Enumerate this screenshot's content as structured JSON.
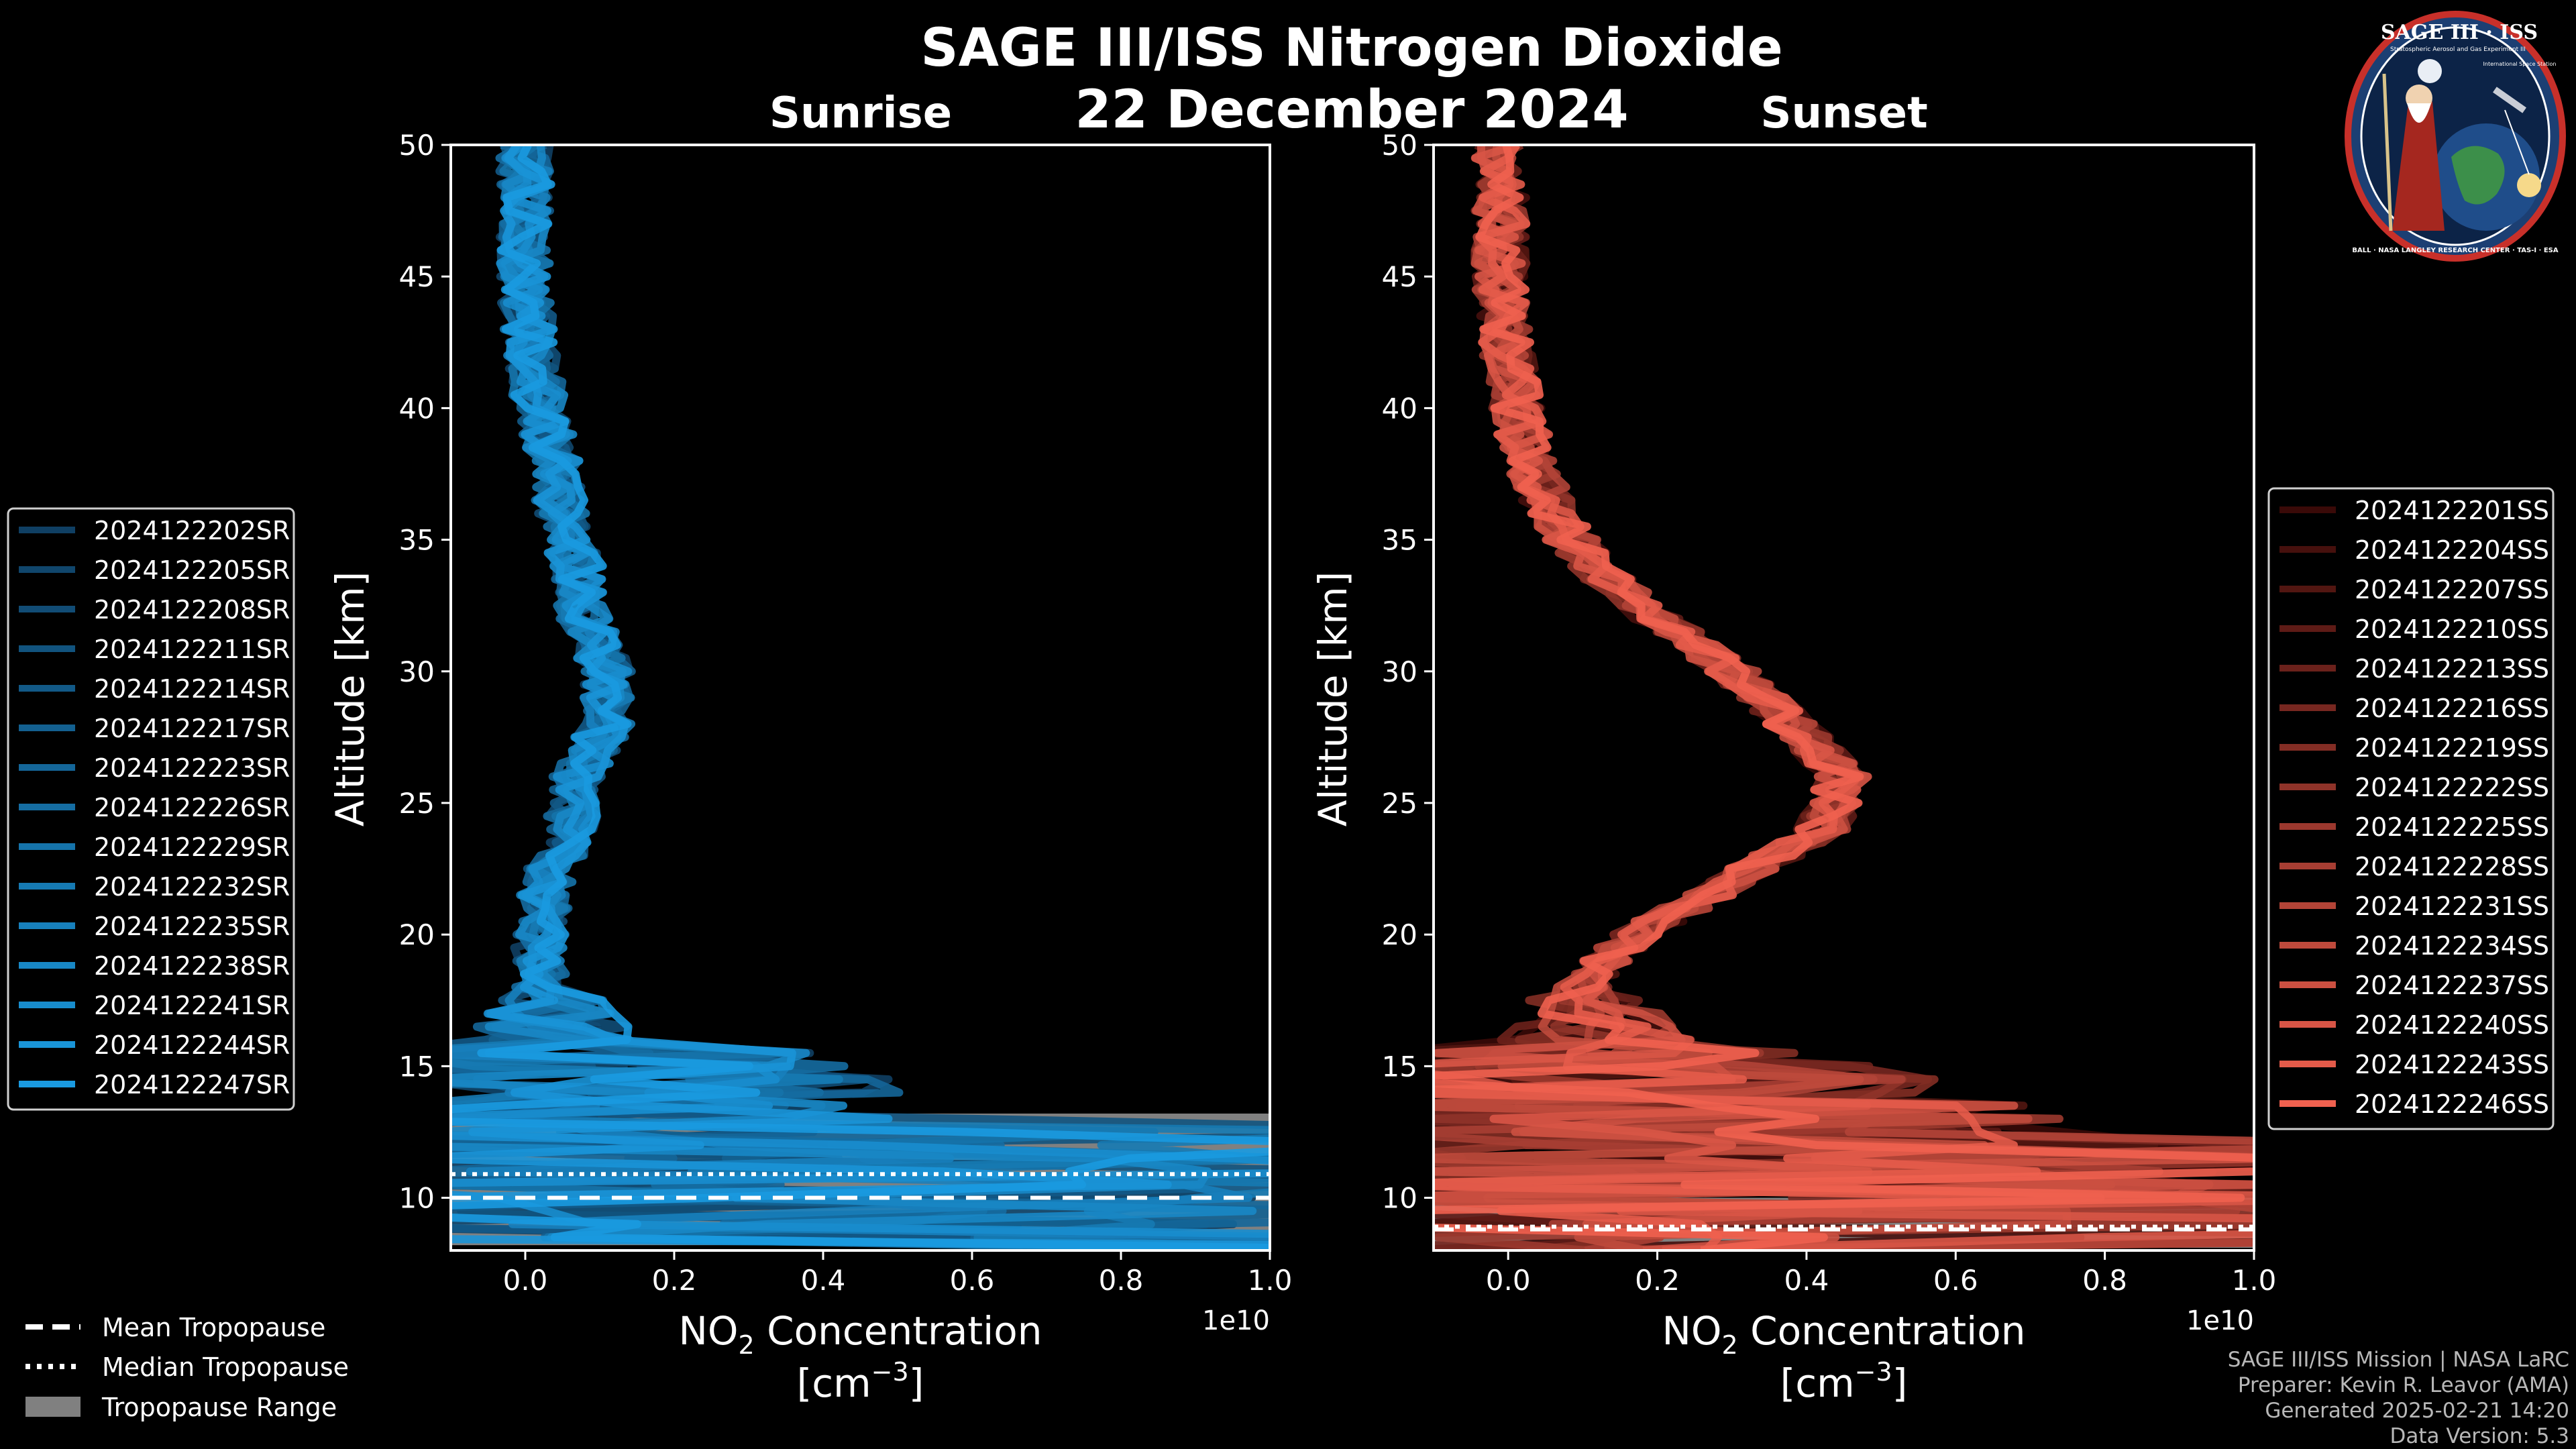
{
  "chart_data": [
    {
      "type": "line",
      "panel": "sunrise",
      "suptitle": "SAGE III/ISS Nitrogen Dioxide",
      "date": "22 December 2024",
      "title": "Sunrise",
      "xlabel_line1": "NO",
      "xlabel_sub": "2",
      "xlabel_line1_rest": " Concentration",
      "xlabel_line2": "[cm",
      "xlabel_sup": "−3",
      "xlabel_line2_rest": "]",
      "ylabel": "Altitude [km]",
      "x_multiplier": "1e10",
      "xlim": [
        -0.1,
        1.0
      ],
      "ylim": [
        8,
        50
      ],
      "xticks": [
        0.0,
        0.2,
        0.4,
        0.6,
        0.8,
        1.0
      ],
      "xtick_labels": [
        "0.0",
        "0.2",
        "0.4",
        "0.6",
        "0.8",
        "1.0"
      ],
      "yticks": [
        10,
        15,
        20,
        25,
        30,
        35,
        40,
        45,
        50
      ],
      "ytick_labels": [
        "10",
        "15",
        "20",
        "25",
        "30",
        "35",
        "40",
        "45",
        "50"
      ],
      "tropopause": {
        "range": [
          8.2,
          13.2
        ],
        "mean": 10.0,
        "median": 10.9
      },
      "series_color_dark": "#0f3f63",
      "series_color_light": "#1a9ae0",
      "profile_knots": {
        "alt": [
          8,
          10,
          12,
          14,
          16,
          18,
          20,
          22,
          24,
          26,
          28,
          30,
          32,
          34,
          36,
          38,
          40,
          42,
          44,
          46,
          48,
          50
        ],
        "no2": [
          0.35,
          0.3,
          0.2,
          0.1,
          0.05,
          0.02,
          0.02,
          0.03,
          0.06,
          0.07,
          0.11,
          0.11,
          0.08,
          0.07,
          0.05,
          0.04,
          0.02,
          0.01,
          0.0,
          0.0,
          0.0,
          0.0
        ]
      },
      "series": [
        {
          "name": "2024122202SR"
        },
        {
          "name": "2024122205SR"
        },
        {
          "name": "2024122208SR"
        },
        {
          "name": "2024122211SR"
        },
        {
          "name": "2024122214SR"
        },
        {
          "name": "2024122217SR"
        },
        {
          "name": "2024122223SR"
        },
        {
          "name": "2024122226SR"
        },
        {
          "name": "2024122229SR"
        },
        {
          "name": "2024122232SR"
        },
        {
          "name": "2024122235SR"
        },
        {
          "name": "2024122238SR"
        },
        {
          "name": "2024122241SR"
        },
        {
          "name": "2024122244SR"
        },
        {
          "name": "2024122247SR"
        }
      ]
    },
    {
      "type": "line",
      "panel": "sunset",
      "title": "Sunset",
      "xlabel_line1": "NO",
      "xlabel_sub": "2",
      "xlabel_line1_rest": " Concentration",
      "xlabel_line2": "[cm",
      "xlabel_sup": "−3",
      "xlabel_line2_rest": "]",
      "ylabel": "Altitude [km]",
      "x_multiplier": "1e10",
      "xlim": [
        -0.1,
        1.0
      ],
      "ylim": [
        8,
        50
      ],
      "xticks": [
        0.0,
        0.2,
        0.4,
        0.6,
        0.8,
        1.0
      ],
      "xtick_labels": [
        "0.0",
        "0.2",
        "0.4",
        "0.6",
        "0.8",
        "1.0"
      ],
      "yticks": [
        10,
        15,
        20,
        25,
        30,
        35,
        40,
        45,
        50
      ],
      "ytick_labels": [
        "10",
        "15",
        "20",
        "25",
        "30",
        "35",
        "40",
        "45",
        "50"
      ],
      "tropopause": {
        "range": [
          8.1,
          10.0
        ],
        "mean": 8.8,
        "median": 8.9
      },
      "series_color_dark": "#3a0a08",
      "series_color_light": "#f0614f",
      "profile_knots": {
        "alt": [
          8,
          10,
          12,
          14,
          16,
          18,
          20,
          22,
          24,
          26,
          28,
          30,
          32,
          34,
          36,
          38,
          40,
          42,
          44,
          46,
          48,
          50
        ],
        "no2": [
          0.45,
          0.4,
          0.3,
          0.2,
          0.12,
          0.1,
          0.17,
          0.3,
          0.42,
          0.45,
          0.38,
          0.3,
          0.2,
          0.11,
          0.06,
          0.03,
          0.01,
          0.0,
          -0.01,
          -0.01,
          -0.01,
          -0.01
        ]
      },
      "series": [
        {
          "name": "2024122201SS"
        },
        {
          "name": "2024122204SS"
        },
        {
          "name": "2024122207SS"
        },
        {
          "name": "2024122210SS"
        },
        {
          "name": "2024122213SS"
        },
        {
          "name": "2024122216SS"
        },
        {
          "name": "2024122219SS"
        },
        {
          "name": "2024122222SS"
        },
        {
          "name": "2024122225SS"
        },
        {
          "name": "2024122228SS"
        },
        {
          "name": "2024122231SS"
        },
        {
          "name": "2024122234SS"
        },
        {
          "name": "2024122237SS"
        },
        {
          "name": "2024122240SS"
        },
        {
          "name": "2024122243SS"
        },
        {
          "name": "2024122246SS"
        }
      ]
    }
  ],
  "tropopause_legend": {
    "mean": "Mean Tropopause",
    "median": "Median Tropopause",
    "range": "Tropopause Range"
  },
  "logo": {
    "title": "SAGE III · ISS",
    "subtitle": "Stratospheric Aerosol and Gas Experiment III",
    "side": "International Space Station",
    "ring": "BALL · NASA LANGLEY RESEARCH CENTER · TAS-I · ESA"
  },
  "credits": {
    "line1": "SAGE III/ISS Mission | NASA LaRC",
    "line2": "Preparer: Kevin R. Leavor (AMA)",
    "line3": "Generated 2025-02-21 14:20",
    "line4": "Data Version: 5.3"
  },
  "colors": {
    "background": "#000000",
    "axes": "#ffffff",
    "tropopause_range": "#808080",
    "logo_blue": "#1c3f73",
    "logo_red": "#c8302a"
  }
}
